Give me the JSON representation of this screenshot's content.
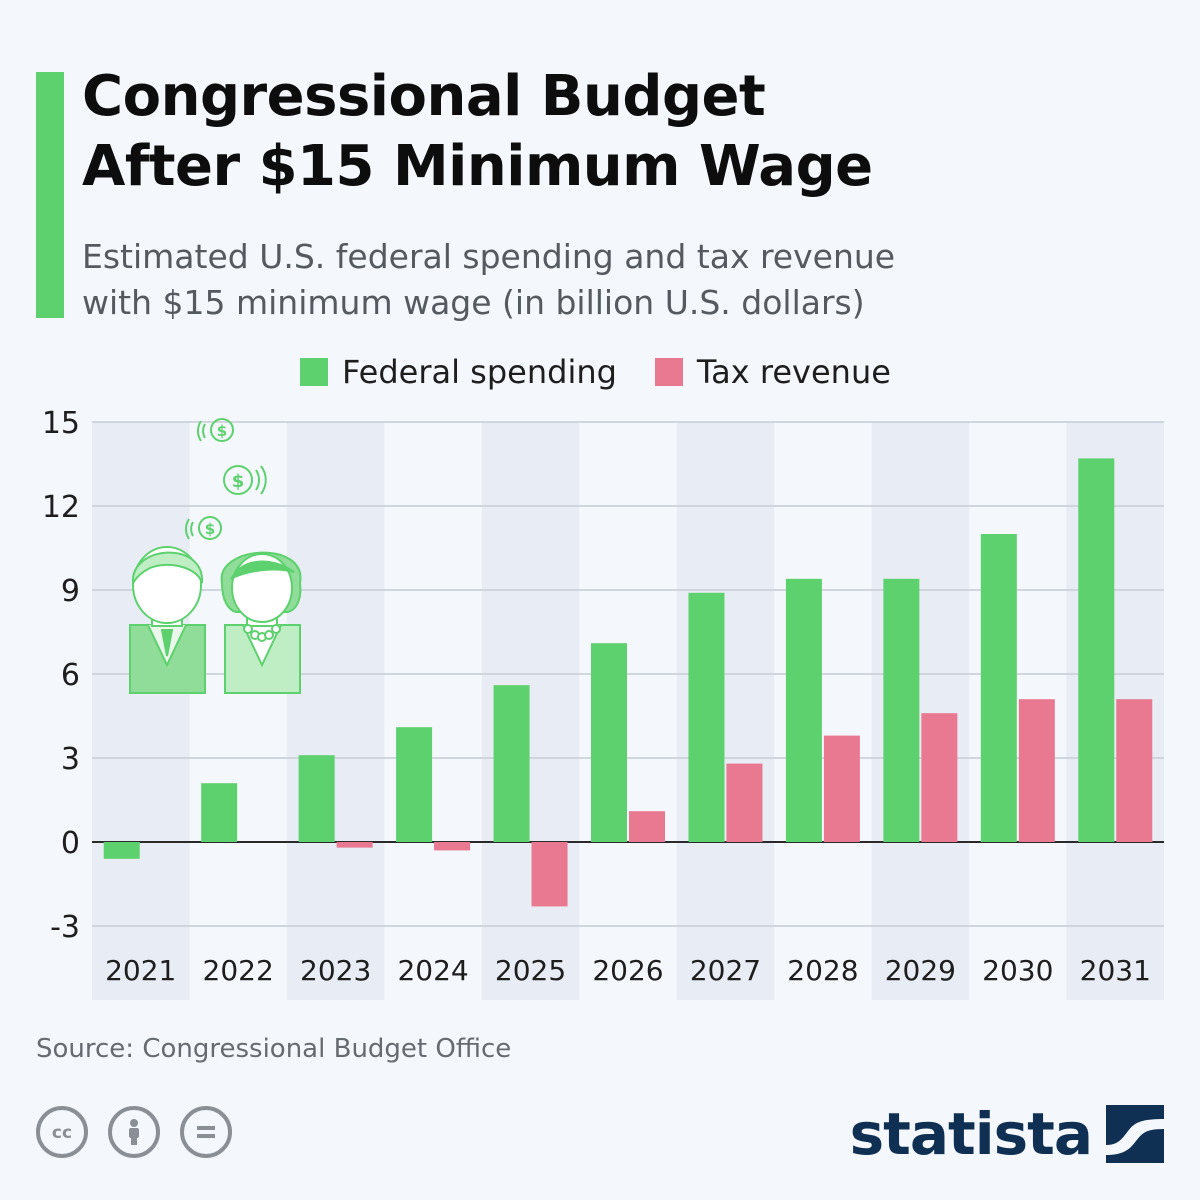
{
  "header": {
    "title_line1": "Congressional Budget",
    "title_line2": "After $15 Minimum Wage",
    "subtitle_line1": "Estimated U.S. federal spending and tax revenue",
    "subtitle_line2": "with $15 minimum wage (in billion U.S. dollars)"
  },
  "colors": {
    "accent": "#5dd16e",
    "federal_spending": "#5dd16e",
    "tax_revenue": "#e97891",
    "alt_column_band": "#e8ecf4",
    "grid": "#c7ccd4",
    "brand": "#0f2f53"
  },
  "legend": {
    "federal_spending": "Federal spending",
    "tax_revenue": "Tax revenue"
  },
  "chart_data": {
    "type": "bar",
    "categories": [
      "2021",
      "2022",
      "2023",
      "2024",
      "2025",
      "2026",
      "2027",
      "2028",
      "2029",
      "2030",
      "2031"
    ],
    "series": [
      {
        "name": "Federal spending",
        "values": [
          -0.6,
          2.1,
          3.1,
          4.1,
          5.6,
          7.1,
          8.9,
          9.4,
          9.4,
          11.0,
          13.7
        ]
      },
      {
        "name": "Tax revenue",
        "values": [
          0,
          0,
          -0.2,
          -0.3,
          -2.3,
          1.1,
          2.8,
          3.8,
          4.6,
          5.1,
          5.1
        ]
      }
    ],
    "ylim": [
      -3,
      15
    ],
    "yticks": [
      15,
      12,
      9,
      6,
      3,
      0,
      -3
    ],
    "grid": true,
    "legend_position": "top",
    "alternating_column_bands": true,
    "decorative_illustration": "two people with dollar coins"
  },
  "footer": {
    "source": "Source: Congressional Budget Office",
    "brand": "statista",
    "license_icons": [
      "creative-commons-icon",
      "attribution-icon",
      "no-derivatives-icon"
    ]
  }
}
